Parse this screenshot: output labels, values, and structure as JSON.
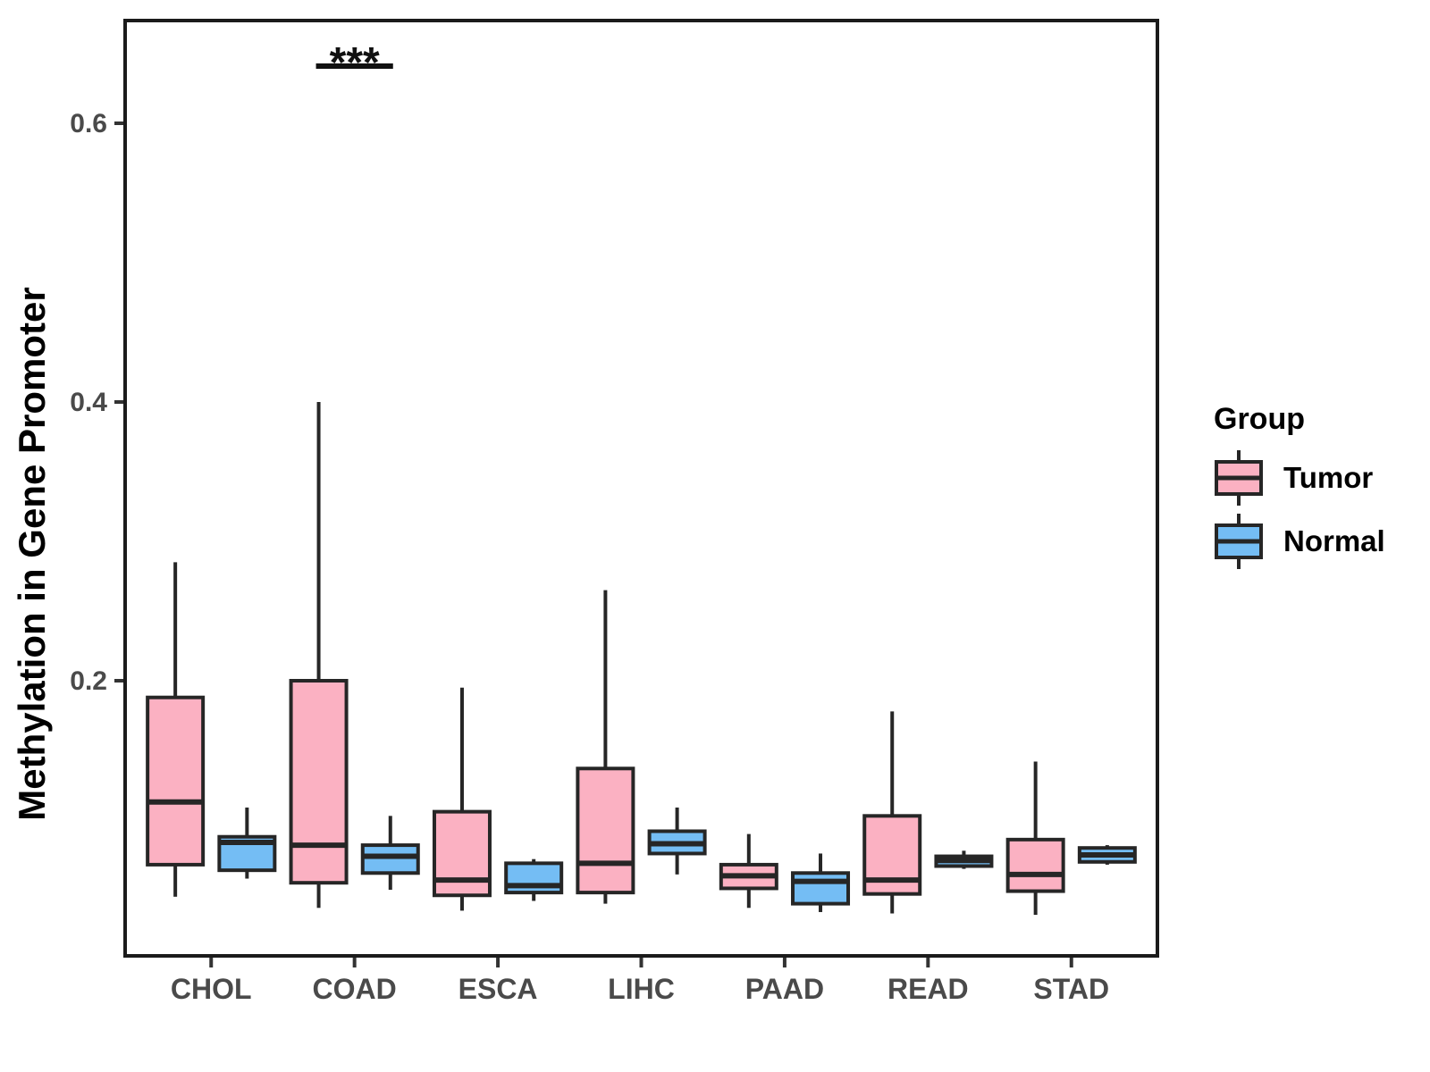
{
  "legend": {
    "title": "Group",
    "items": [
      {
        "label": "Tumor",
        "color": "#FBB1C2"
      },
      {
        "label": "Normal",
        "color": "#74BDF4"
      }
    ]
  },
  "colors": {
    "box_border": "#262626",
    "panel_border": "#1b1b1b",
    "tick": "#333333",
    "tick_label": "#4a4a4a"
  },
  "chart_data": {
    "type": "boxplot",
    "title": "",
    "xlabel": "",
    "ylabel": "Methylation in Gene Promoter",
    "categories": [
      "CHOL",
      "COAD",
      "ESCA",
      "LIHC",
      "PAAD",
      "READ",
      "STAD"
    ],
    "y_ticks": [
      0.2,
      0.4,
      0.6
    ],
    "y_tick_labels": [
      "0.2",
      "0.4",
      "0.6"
    ],
    "ylim": [
      0.0,
      0.675
    ],
    "grid": false,
    "legend_position": "right",
    "series": [
      {
        "name": "Tumor",
        "color": "#FBB1C2",
        "boxes": [
          {
            "category": "CHOL",
            "min": 0.045,
            "q1": 0.068,
            "median": 0.113,
            "q3": 0.188,
            "max": 0.285
          },
          {
            "category": "COAD",
            "min": 0.037,
            "q1": 0.055,
            "median": 0.082,
            "q3": 0.2,
            "max": 0.4
          },
          {
            "category": "ESCA",
            "min": 0.035,
            "q1": 0.046,
            "median": 0.057,
            "q3": 0.106,
            "max": 0.195
          },
          {
            "category": "LIHC",
            "min": 0.04,
            "q1": 0.048,
            "median": 0.069,
            "q3": 0.137,
            "max": 0.265
          },
          {
            "category": "PAAD",
            "min": 0.037,
            "q1": 0.051,
            "median": 0.06,
            "q3": 0.068,
            "max": 0.09
          },
          {
            "category": "READ",
            "min": 0.033,
            "q1": 0.047,
            "median": 0.057,
            "q3": 0.103,
            "max": 0.178
          },
          {
            "category": "STAD",
            "min": 0.032,
            "q1": 0.049,
            "median": 0.061,
            "q3": 0.086,
            "max": 0.142
          }
        ]
      },
      {
        "name": "Normal",
        "color": "#74BDF4",
        "boxes": [
          {
            "category": "CHOL",
            "min": 0.058,
            "q1": 0.064,
            "median": 0.084,
            "q3": 0.088,
            "max": 0.109
          },
          {
            "category": "COAD",
            "min": 0.05,
            "q1": 0.062,
            "median": 0.074,
            "q3": 0.082,
            "max": 0.103
          },
          {
            "category": "ESCA",
            "min": 0.042,
            "q1": 0.048,
            "median": 0.053,
            "q3": 0.069,
            "max": 0.072
          },
          {
            "category": "LIHC",
            "min": 0.061,
            "q1": 0.076,
            "median": 0.083,
            "q3": 0.092,
            "max": 0.109
          },
          {
            "category": "PAAD",
            "min": 0.034,
            "q1": 0.04,
            "median": 0.056,
            "q3": 0.062,
            "max": 0.076
          },
          {
            "category": "READ",
            "min": 0.065,
            "q1": 0.067,
            "median": 0.071,
            "q3": 0.074,
            "max": 0.078
          },
          {
            "category": "STAD",
            "min": 0.068,
            "q1": 0.07,
            "median": 0.075,
            "q3": 0.08,
            "max": 0.082
          }
        ]
      }
    ],
    "significance": {
      "category": "COAD",
      "label": "***",
      "between": [
        "Tumor",
        "Normal"
      ]
    }
  }
}
